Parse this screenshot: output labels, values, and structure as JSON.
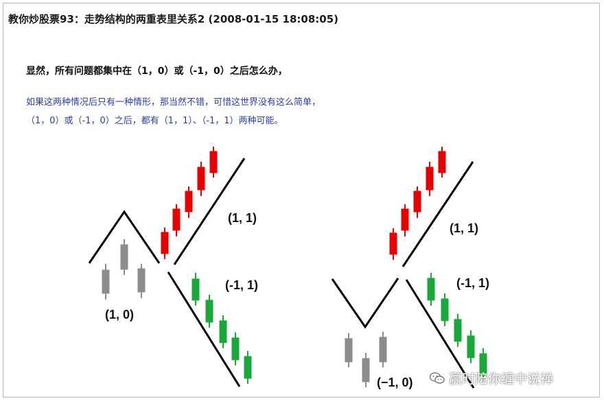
{
  "header": {
    "title": "教你炒股票93：走势结构的两重表里关系2  (2008-01-15 18:08:05)"
  },
  "body": {
    "lead": "显然，所有问题都集中在（1，0）或（-1，0）之后怎么办，",
    "line1": "如果这两种情况后只有一种情形，那当然不错，可惜这世界没有这么简单，",
    "line2": "（1，0）或（-1，0）之后，都有（1，1）、（-1，1）两种可能。"
  },
  "diagram": {
    "left": {
      "base_label": "(1, 0)",
      "up_label": "(1, 1)",
      "down_label": "(-1, 1)"
    },
    "right": {
      "base_label": "(−1, 0)",
      "up_label": "(1, 1)",
      "down_label": "(-1, 1)"
    },
    "colors": {
      "up": "#e60000",
      "down": "#1aa83a",
      "neutral": "#8c8c8c",
      "line": "#000000"
    }
  },
  "watermark": {
    "icon": "wechat-icon",
    "text": "赢时陪你缠中说禅"
  }
}
